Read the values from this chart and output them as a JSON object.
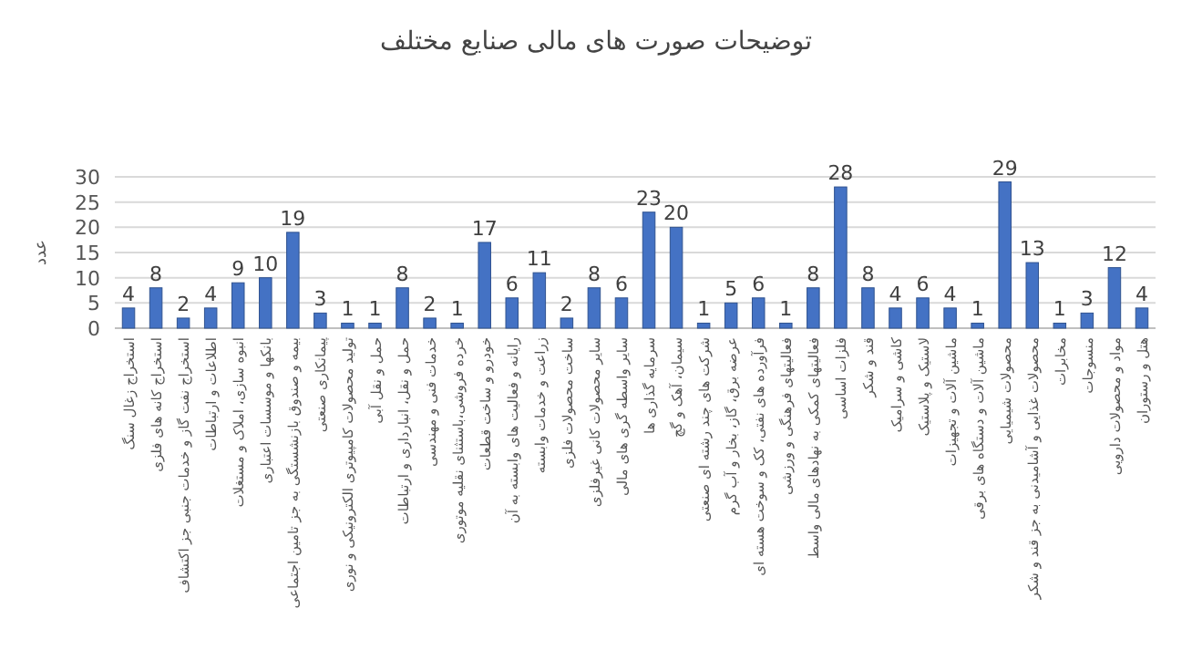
{
  "chart_data": {
    "type": "bar",
    "title": "توضیحات صورت های مالی صنایع مختلف",
    "ylabel": "عدد",
    "categories": [
      "استخراج زغال سنگ",
      "استخراج کانه های فلزی",
      "استخراج نفت گاز و خدمات جنبی جز اکتشاف",
      "اطلاعات و ارتباطات",
      "انبوه سازی، املاک و مستغلات",
      "بانکها و موسسات اعتباری",
      "بیمه و صندوق بازنشستگی به جز تامین اجتماعی",
      "پیمانکاری صنعتی",
      "تولید محصولات کامپیوتری الکترونیکی و نوری",
      "حمل و نقل آبی",
      "حمل و نقل، انبارداری و ارتباطات",
      "خدمات فنی و مهندسی",
      "خرده فروشی،باستثنای نقلیه موتوری",
      "خودرو و ساخت قطعات",
      "رایانه و فعالیت های وابسته به آن",
      "زراعت و خدمات وابسته",
      "ساخت محصولات فلزی",
      "سایر محصولات کانی غیرفلزی",
      "سایر واسطه گری های مالی",
      "سرمایه گذاری ها",
      "سیمان، آهک و گچ",
      "شرکت های چند رشته ای صنعتی",
      "عرضه برق، گاز، بخار و آب گرم",
      "فرآورده های نفتی، کک و سوخت هسته ای",
      "فعالیتهای فرهنگی و ورزشی",
      "فعالیتهای کمکی به نهادهای مالی واسط",
      "فلزات اساسی",
      "قند و شکر",
      "کاشی و سرامیک",
      "لاستیک و پلاستیک",
      "ماشین آلات و تجهیزات",
      "ماشین آلات و دستگاه های برقی",
      "محصولات شیمیایی",
      "محصولات غذایی و آشامیدنی به جز قند و شکر",
      "مخابرات",
      "منسوجات",
      "مواد و محصولات دارویی",
      "هتل و رستوران"
    ],
    "values": [
      4,
      8,
      2,
      4,
      9,
      10,
      19,
      3,
      1,
      1,
      8,
      2,
      1,
      17,
      6,
      11,
      2,
      8,
      6,
      23,
      20,
      1,
      5,
      6,
      1,
      8,
      28,
      8,
      4,
      6,
      4,
      1,
      29,
      13,
      1,
      3,
      12,
      4
    ],
    "color": "#4472c4",
    "ylim": [
      0,
      30
    ],
    "yticks": [
      0,
      5,
      10,
      15,
      20,
      25,
      30
    ],
    "grid": "y",
    "data_labels": true
  }
}
